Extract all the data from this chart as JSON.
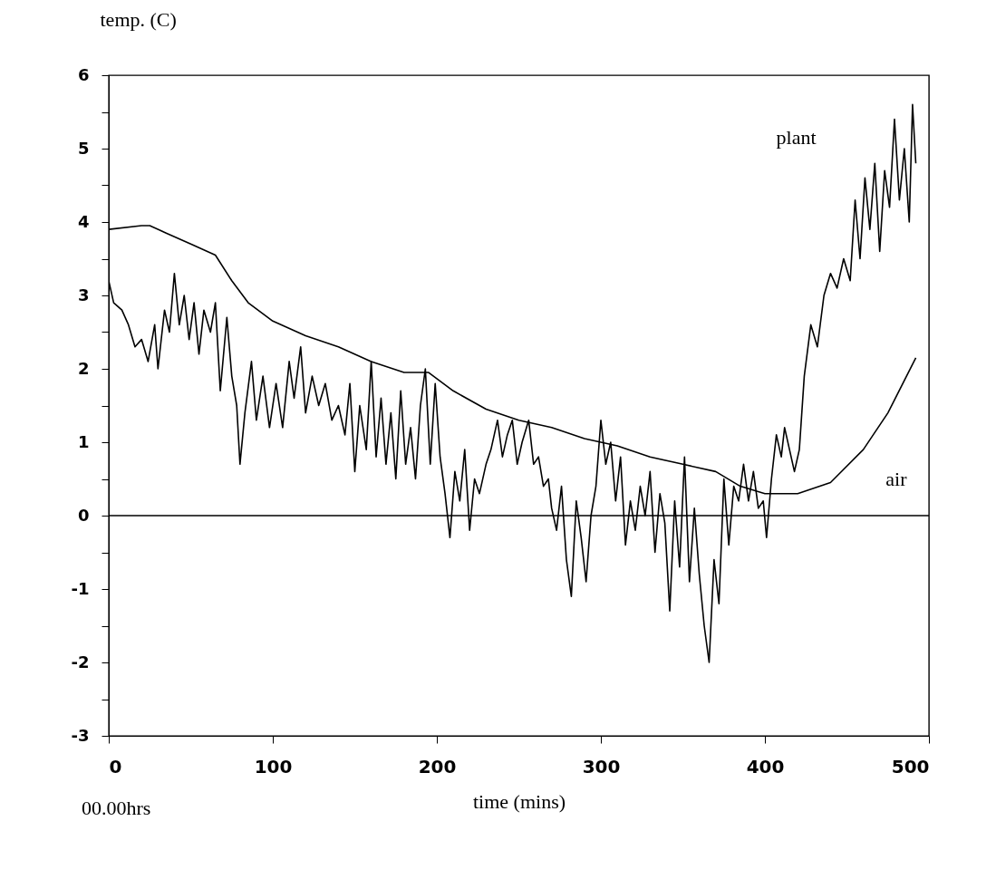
{
  "chart_data": {
    "type": "line",
    "xlabel": "time (mins)",
    "ylabel": "temp. (C)",
    "xlim": [
      0,
      500
    ],
    "ylim": [
      -3,
      6
    ],
    "xticks": [
      0,
      100,
      200,
      300,
      400,
      500
    ],
    "yticks": [
      -3,
      {
        "value": -2.5,
        "label": null
      },
      -2,
      {
        "value": -1.5,
        "label": null
      },
      -1,
      {
        "value": -0.5,
        "label": null
      },
      0,
      {
        "value": 0.5,
        "label": null
      },
      1,
      {
        "value": 1.5,
        "label": null
      },
      2,
      {
        "value": 2.5,
        "label": null
      },
      3,
      {
        "value": 3.5,
        "label": null
      },
      4,
      {
        "value": 4.5,
        "label": null
      },
      5,
      {
        "value": 5.5,
        "label": null
      },
      6
    ],
    "grid": false,
    "legend": false,
    "ref_lines": [
      {
        "axis": "y",
        "value": 0,
        "color": "#000000"
      }
    ],
    "annotations": [
      "00.00hrs"
    ],
    "series": [
      {
        "name": "plant",
        "color": "#000000",
        "x": [
          0,
          3,
          8,
          12,
          16,
          20,
          24,
          28,
          30,
          34,
          37,
          40,
          43,
          46,
          49,
          52,
          55,
          58,
          62,
          65,
          68,
          72,
          75,
          78,
          80,
          83,
          87,
          90,
          94,
          98,
          102,
          106,
          110,
          113,
          117,
          120,
          124,
          128,
          132,
          136,
          140,
          144,
          147,
          150,
          153,
          157,
          160,
          163,
          166,
          169,
          172,
          175,
          178,
          181,
          184,
          187,
          190,
          193,
          196,
          199,
          202,
          205,
          208,
          211,
          214,
          217,
          220,
          223,
          226,
          230,
          233,
          237,
          240,
          243,
          246,
          249,
          252,
          256,
          259,
          262,
          265,
          268,
          270,
          273,
          276,
          279,
          282,
          285,
          288,
          291,
          294,
          297,
          300,
          303,
          306,
          309,
          312,
          315,
          318,
          321,
          324,
          327,
          330,
          333,
          336,
          339,
          342,
          345,
          348,
          351,
          354,
          357,
          360,
          363,
          366,
          369,
          372,
          375,
          378,
          381,
          384,
          387,
          390,
          393,
          396,
          399,
          401,
          404,
          407,
          410,
          412,
          415,
          418,
          421,
          424,
          428,
          432,
          436,
          440,
          444,
          448,
          452,
          455,
          458,
          461,
          464,
          467,
          470,
          473,
          476,
          479,
          482,
          485,
          488,
          490,
          492
        ],
        "values": [
          3.2,
          2.9,
          2.8,
          2.6,
          2.3,
          2.4,
          2.1,
          2.6,
          2.0,
          2.8,
          2.5,
          3.3,
          2.6,
          3.0,
          2.4,
          2.9,
          2.2,
          2.8,
          2.5,
          2.9,
          1.7,
          2.7,
          1.9,
          1.5,
          0.7,
          1.4,
          2.1,
          1.3,
          1.9,
          1.2,
          1.8,
          1.2,
          2.1,
          1.6,
          2.3,
          1.4,
          1.9,
          1.5,
          1.8,
          1.3,
          1.5,
          1.1,
          1.8,
          0.6,
          1.5,
          0.9,
          2.1,
          0.8,
          1.6,
          0.7,
          1.4,
          0.5,
          1.7,
          0.7,
          1.2,
          0.5,
          1.5,
          2.0,
          0.7,
          1.8,
          0.8,
          0.3,
          -0.3,
          0.6,
          0.2,
          0.9,
          -0.2,
          0.5,
          0.3,
          0.7,
          0.9,
          1.3,
          0.8,
          1.1,
          1.3,
          0.7,
          1.0,
          1.3,
          0.7,
          0.8,
          0.4,
          0.5,
          0.1,
          -0.2,
          0.4,
          -0.6,
          -1.1,
          0.2,
          -0.3,
          -0.9,
          0.0,
          0.4,
          1.3,
          0.7,
          1.0,
          0.2,
          0.8,
          -0.4,
          0.2,
          -0.2,
          0.4,
          0.0,
          0.6,
          -0.5,
          0.3,
          -0.1,
          -1.3,
          0.2,
          -0.7,
          0.8,
          -0.9,
          0.1,
          -0.8,
          -1.5,
          -2.0,
          -0.6,
          -1.2,
          0.5,
          -0.4,
          0.4,
          0.2,
          0.7,
          0.2,
          0.6,
          0.1,
          0.2,
          -0.3,
          0.5,
          1.1,
          0.8,
          1.2,
          0.9,
          0.6,
          0.9,
          1.9,
          2.6,
          2.3,
          3.0,
          3.3,
          3.1,
          3.5,
          3.2,
          4.3,
          3.5,
          4.6,
          3.9,
          4.8,
          3.6,
          4.7,
          4.2,
          5.4,
          4.3,
          5.0,
          4.0,
          5.6,
          4.8
        ]
      },
      {
        "name": "air",
        "color": "#000000",
        "x": [
          0,
          20,
          25,
          35,
          50,
          65,
          75,
          85,
          100,
          120,
          140,
          160,
          180,
          195,
          210,
          230,
          250,
          270,
          290,
          310,
          330,
          350,
          370,
          385,
          400,
          420,
          440,
          460,
          475,
          492
        ],
        "values": [
          3.9,
          3.95,
          3.95,
          3.85,
          3.7,
          3.55,
          3.2,
          2.9,
          2.65,
          2.45,
          2.3,
          2.1,
          1.95,
          1.95,
          1.7,
          1.45,
          1.3,
          1.2,
          1.05,
          0.95,
          0.8,
          0.7,
          0.6,
          0.4,
          0.3,
          0.3,
          0.45,
          0.9,
          1.4,
          2.15
        ]
      }
    ]
  }
}
